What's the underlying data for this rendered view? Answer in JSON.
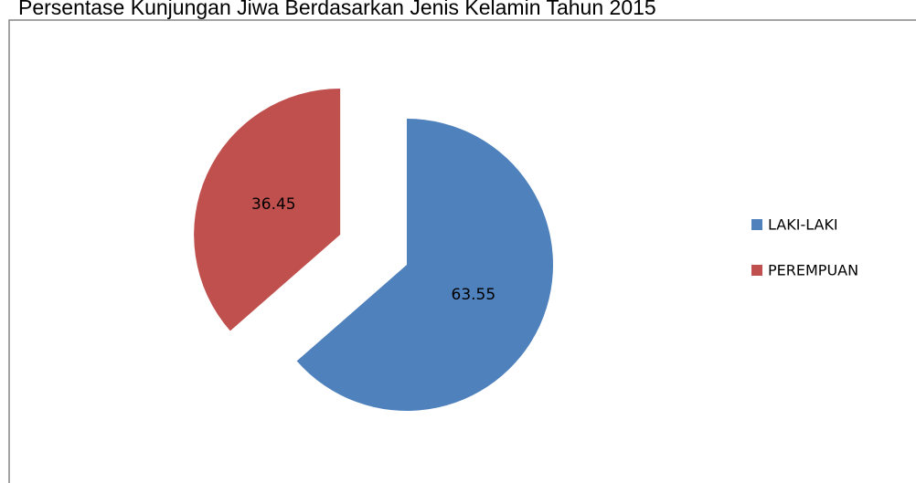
{
  "chart_data": {
    "type": "pie",
    "title": "Persentase Kunjungan Jiwa Berdasarkan Jenis Kelamin Tahun 2015",
    "categories": [
      "LAKI-LAKI",
      "PEREMPUAN"
    ],
    "values": [
      63.55,
      36.45
    ],
    "colors": [
      "#4f81bd",
      "#c0504d"
    ],
    "exploded": [
      false,
      true
    ],
    "legend": "right"
  }
}
